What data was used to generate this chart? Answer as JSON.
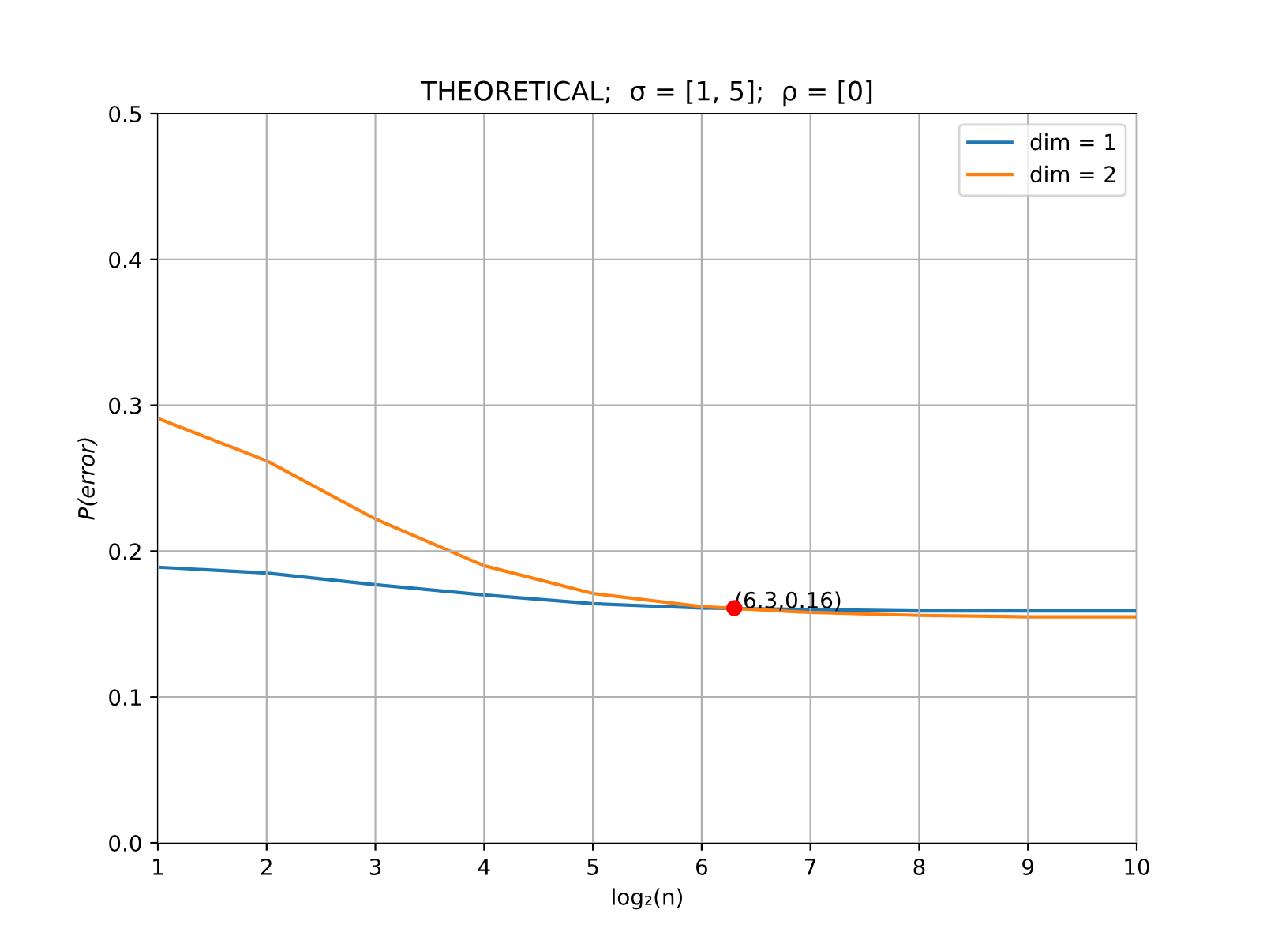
{
  "chart_data": {
    "type": "line",
    "title": "THEORETICAL;  σ = [1, 5];  ρ = [0]",
    "xlabel": "log₂(n)",
    "ylabel": "P(error)",
    "x": [
      1,
      2,
      3,
      4,
      5,
      6,
      7,
      8,
      9,
      10
    ],
    "series": [
      {
        "name": "dim = 1",
        "color": "#1f77b4",
        "values": [
          0.189,
          0.185,
          0.177,
          0.17,
          0.164,
          0.161,
          0.16,
          0.159,
          0.159,
          0.159
        ]
      },
      {
        "name": "dim = 2",
        "color": "#ff7f0e",
        "values": [
          0.291,
          0.262,
          0.222,
          0.19,
          0.171,
          0.162,
          0.158,
          0.156,
          0.155,
          0.155
        ]
      },
      {
        "type": "scatter",
        "color": "#ff0000",
        "x": [
          6.3
        ],
        "values": [
          0.161
        ],
        "marker": "circle"
      }
    ],
    "annotations": [
      {
        "text": "(6.3,0.16)",
        "x": 6.3,
        "y": 0.161
      }
    ],
    "xlim": [
      1,
      10
    ],
    "xticks": [
      1,
      2,
      3,
      4,
      5,
      6,
      7,
      8,
      9,
      10
    ],
    "ylim": [
      0,
      0.5
    ],
    "yticks": [
      {
        "value": 0,
        "label": "0.0"
      },
      0.1,
      0.2,
      0.3,
      0.4,
      0.5
    ],
    "grid": true,
    "legend": "top right"
  }
}
